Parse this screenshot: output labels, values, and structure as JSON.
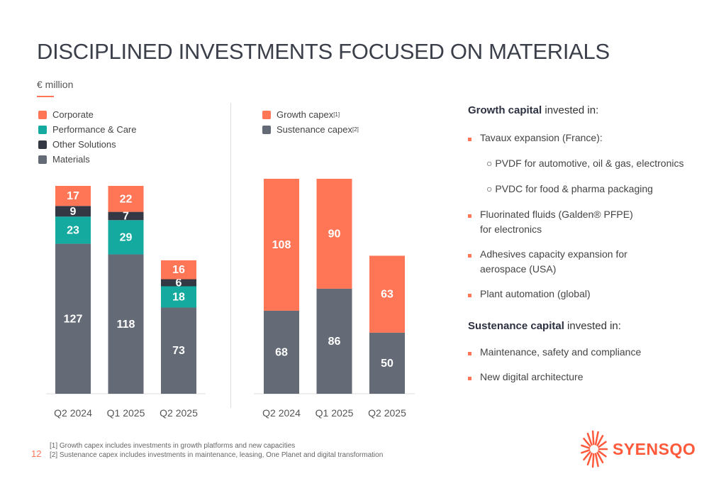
{
  "title": "DISCIPLINED INVESTMENTS FOCUSED ON MATERIALS",
  "unit": "€ million",
  "chart_data": [
    {
      "type": "bar",
      "stacked": true,
      "categories": [
        "Q2 2024",
        "Q1 2025",
        "Q2 2025"
      ],
      "series": [
        {
          "name": "Materials",
          "color": "#646a76",
          "values": [
            127,
            118,
            73
          ]
        },
        {
          "name": "Performance & Care",
          "color": "#14aaa0",
          "values": [
            23,
            29,
            18
          ]
        },
        {
          "name": "Other Solutions",
          "color": "#343844",
          "values": [
            9,
            7,
            6
          ]
        },
        {
          "name": "Corporate",
          "color": "#ff7657",
          "values": [
            17,
            22,
            16
          ]
        }
      ],
      "legend": [
        "Corporate",
        "Performance & Care",
        "Other Solutions",
        "Materials"
      ],
      "legend_colors": [
        "#ff7657",
        "#14aaa0",
        "#343844",
        "#646a76"
      ],
      "ylim": [
        0,
        176
      ]
    },
    {
      "type": "bar",
      "stacked": true,
      "categories": [
        "Q2 2024",
        "Q1 2025",
        "Q2 2025"
      ],
      "series": [
        {
          "name": "Sustenance capex",
          "color": "#646a76",
          "values": [
            68,
            86,
            50
          ]
        },
        {
          "name": "Growth capex",
          "color": "#ff7657",
          "values": [
            108,
            90,
            63
          ]
        }
      ],
      "legend": [
        "Growth capex",
        "Sustenance capex"
      ],
      "legend_sup": [
        "[1]",
        "[2]"
      ],
      "legend_colors": [
        "#ff7657",
        "#646a76"
      ],
      "ylim": [
        0,
        176
      ]
    }
  ],
  "right": {
    "growth_heading_bold": "Growth capital",
    "growth_heading_rest": " invested in:",
    "growth_items": [
      "Tavaux expansion (France):",
      "Fluorinated fluids (Galden® PFPE) for electronics",
      "Adhesives capacity expansion for aerospace (USA)",
      "Plant automation (global)"
    ],
    "sub_items": [
      "PVDF for automotive, oil & gas, electronics",
      "PVDC for food & pharma packaging"
    ],
    "sust_heading_bold": "Sustenance capital",
    "sust_heading_rest": " invested in:",
    "sust_items": [
      "Maintenance, safety and compliance",
      "New digital architecture"
    ]
  },
  "footnotes": [
    "[1] Growth capex includes investments in growth platforms and new capacities",
    "[2] Sustenance capex includes investments in maintenance, leasing, One Planet and digital transformation"
  ],
  "page_number": "12",
  "logo": "SYENSQO"
}
